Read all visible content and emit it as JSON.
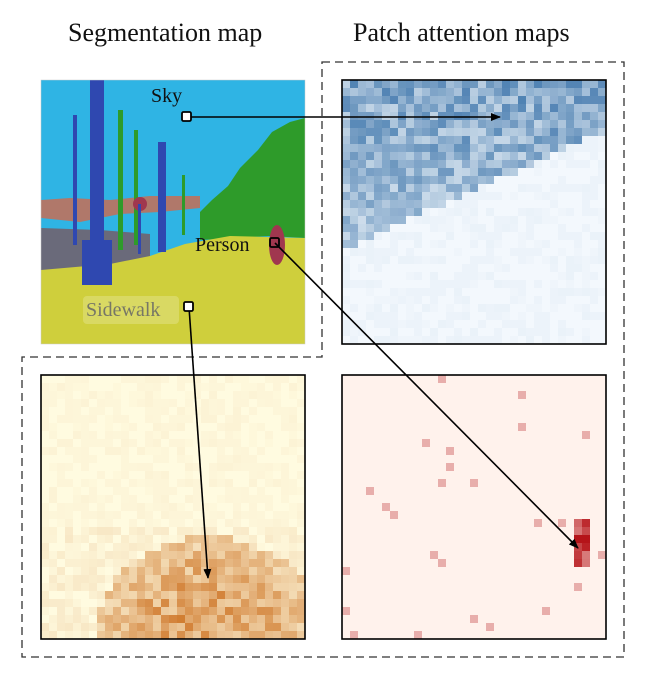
{
  "titles": {
    "left": "Segmentation map",
    "right": "Patch attention maps"
  },
  "labels": {
    "sky": "Sky",
    "person": "Person",
    "sidewalk": "Sidewalk"
  },
  "colors": {
    "sky": "#2fb4e4",
    "vegetation": "#2e9b2a",
    "pole": "#2f48b0",
    "sidewalk": "#cfcf3c",
    "person": "#a0374f",
    "road": "#6a6a7a",
    "building": "#b0786a",
    "attention_blue": "#1f5f9c",
    "attention_orange": "#c8640f",
    "attention_red": "#b40f14"
  },
  "panels": [
    {
      "name": "segmentation-map",
      "content": "Segmentation map"
    },
    {
      "name": "sky-attention-map",
      "query": "Sky",
      "colormap": "Blues"
    },
    {
      "name": "sidewalk-attention-map",
      "query": "Sidewalk",
      "colormap": "YlOrBr"
    },
    {
      "name": "person-attention-map",
      "query": "Person",
      "colormap": "Reds"
    }
  ]
}
